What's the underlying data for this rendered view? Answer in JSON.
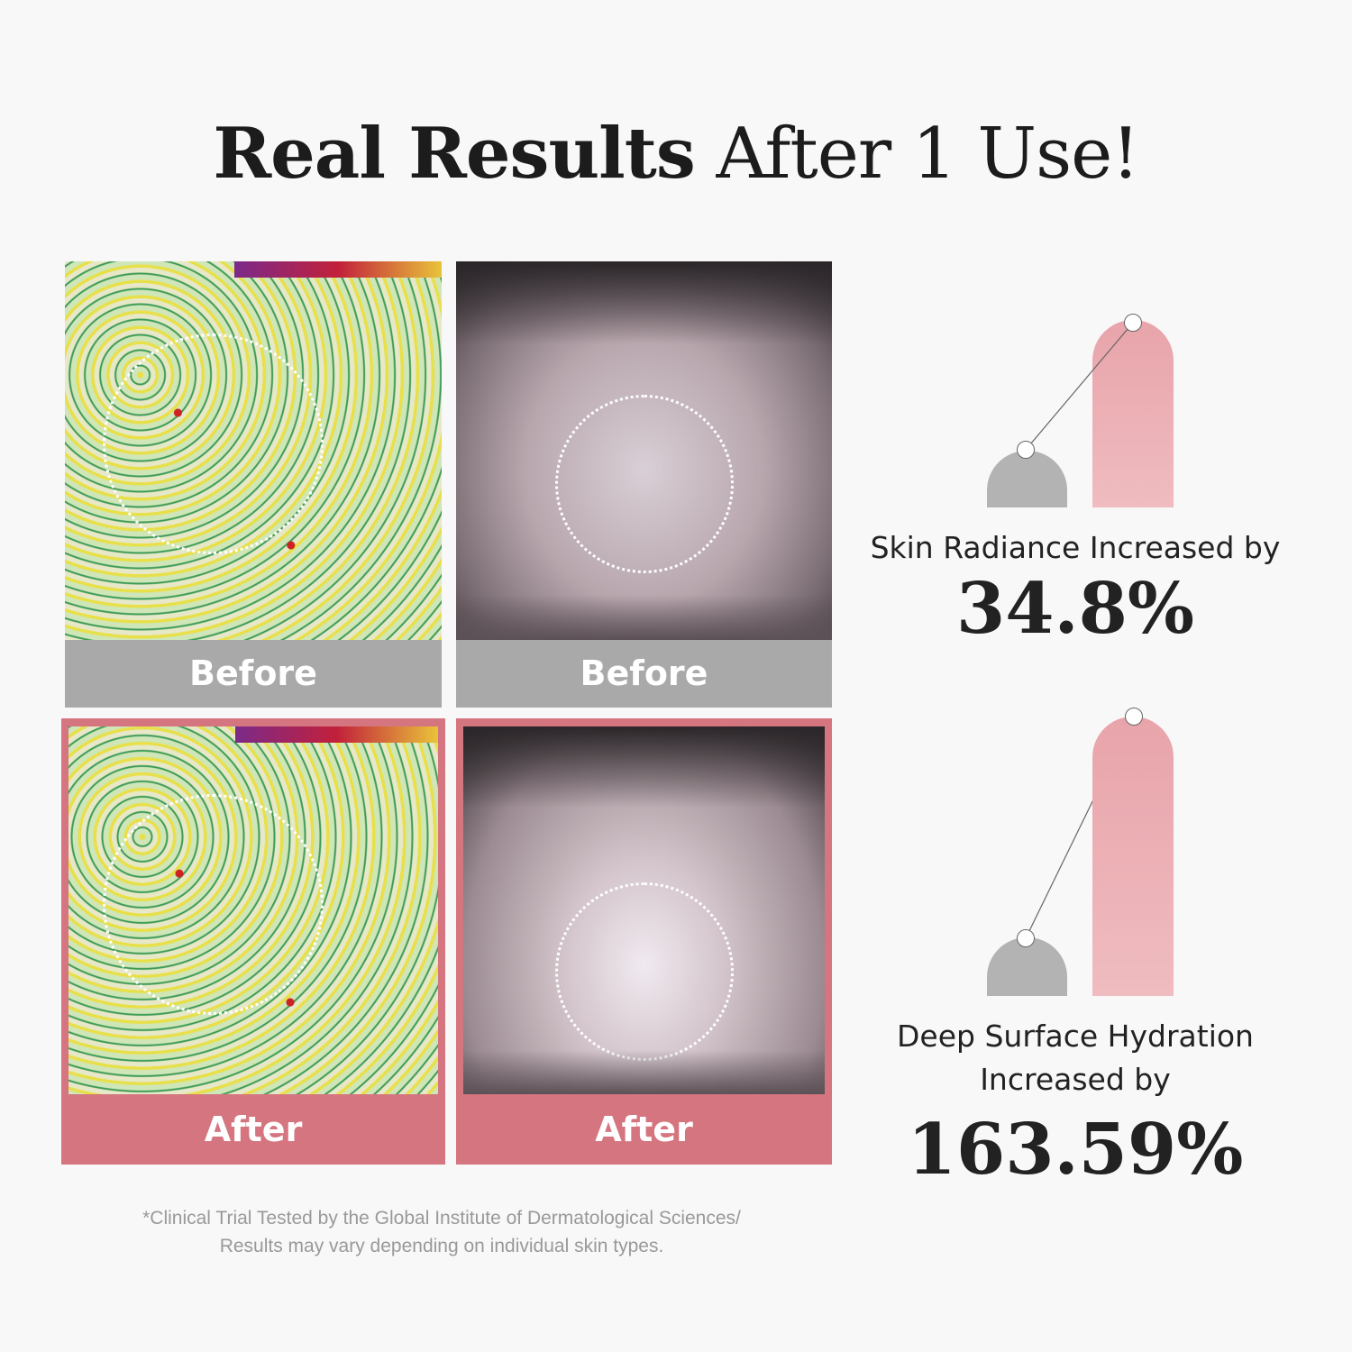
{
  "title": {
    "bold": "Real Results",
    "light": "After 1 Use!"
  },
  "panels": {
    "before_label": "Before",
    "after_label": "After"
  },
  "stats": [
    {
      "label": "Skin Radiance Increased by",
      "value": "34.8%",
      "before_level": 0.3,
      "after_level": 1.0
    },
    {
      "label_line1": "Deep Surface Hydration",
      "label_line2": "Increased by",
      "value": "163.59%",
      "before_level": 0.21,
      "after_level": 1.0
    }
  ],
  "footnote": {
    "line1": "*Clinical Trial Tested by the Global Institute of Dermatological Sciences/",
    "line2": "Results may vary depending on individual skin types."
  },
  "colors": {
    "before": "#a9a9a9",
    "after": "#d5757f",
    "bar_pink": "#e8a4aa",
    "bar_gray": "#b3b3b3"
  }
}
